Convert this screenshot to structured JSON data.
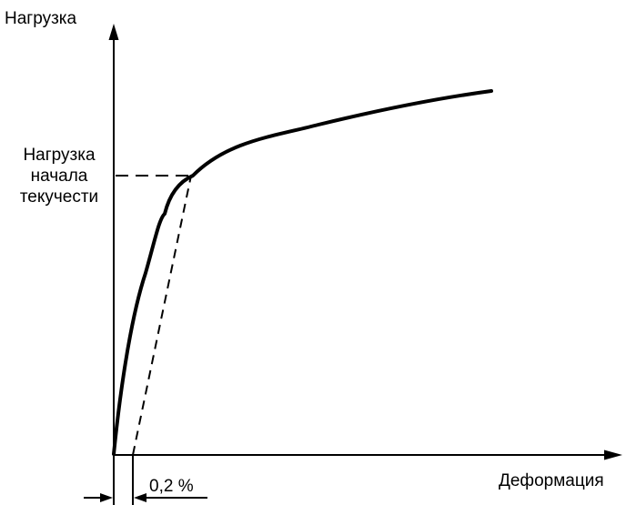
{
  "labels": {
    "y_axis": "Нагрузка",
    "x_axis": "Деформация",
    "yield_line1": "Нагрузка",
    "yield_line2": "начала",
    "yield_line3": "текучести",
    "offset": "0,2 %"
  },
  "colors": {
    "ink": "#000000",
    "background": "#ffffff"
  }
}
